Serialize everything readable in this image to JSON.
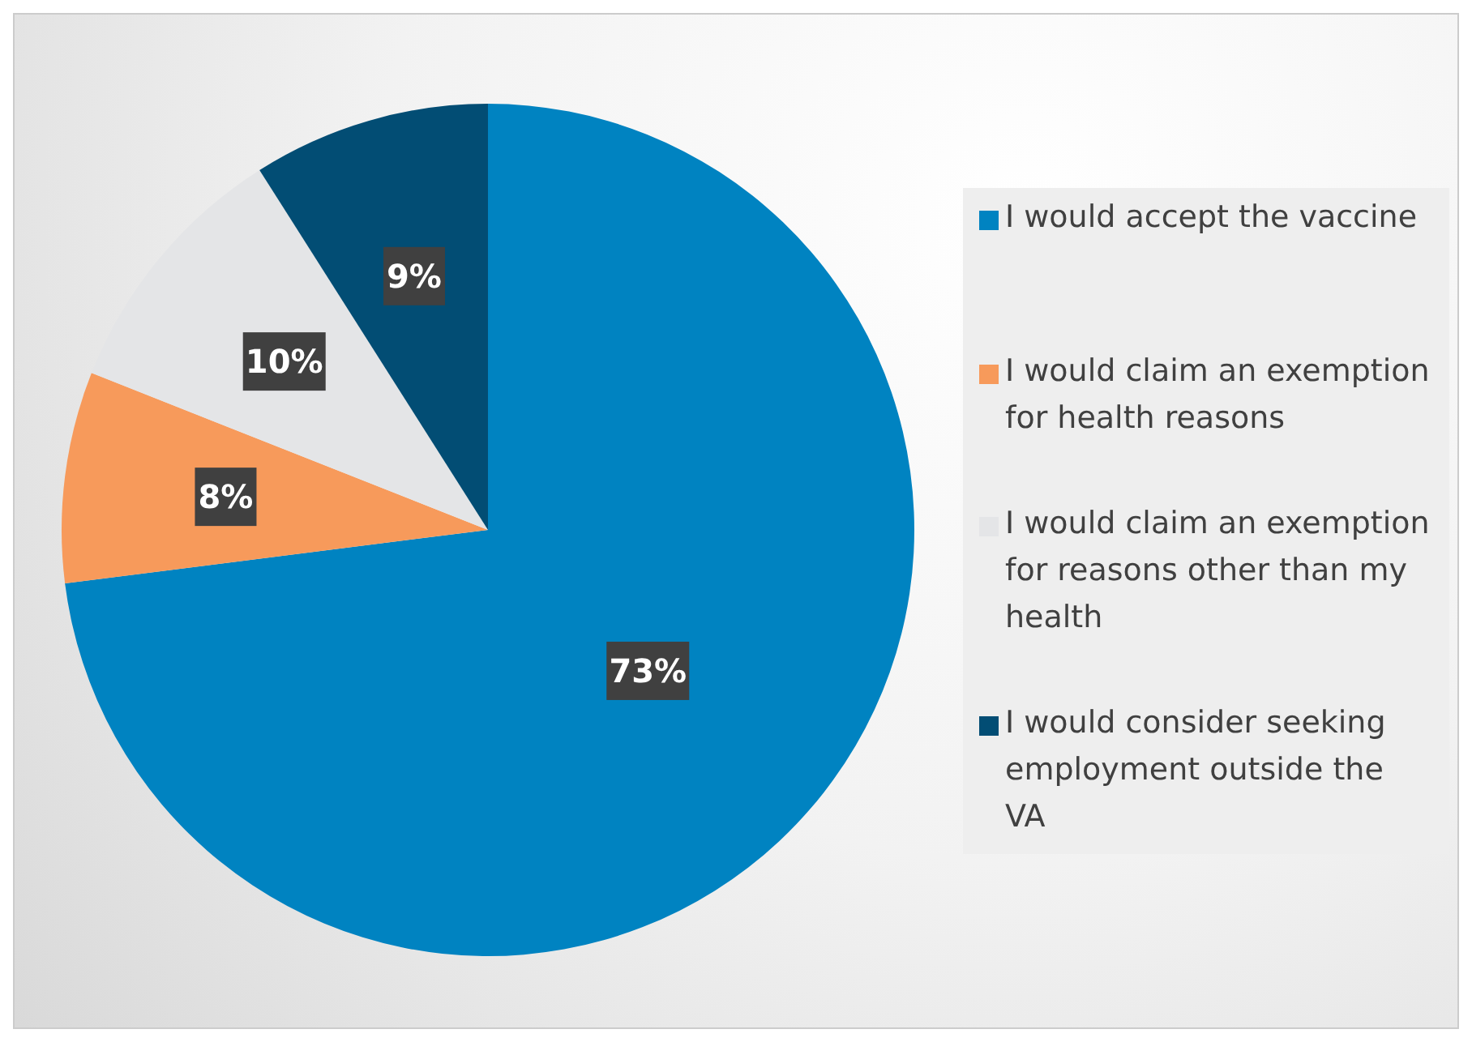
{
  "chart_data": {
    "type": "pie",
    "categories": [
      "I would accept the vaccine",
      "I would claim an exemption for health reasons",
      "I would claim an exemption for reasons other than my health",
      "I would consider seeking employment outside the VA"
    ],
    "values": [
      73,
      8,
      10,
      9
    ],
    "colors": [
      "#0083c1",
      "#f79a5b",
      "#e4e5e7",
      "#024d74"
    ],
    "value_labels": [
      "73%",
      "8%",
      "10%",
      "9%"
    ],
    "legend": "right"
  }
}
